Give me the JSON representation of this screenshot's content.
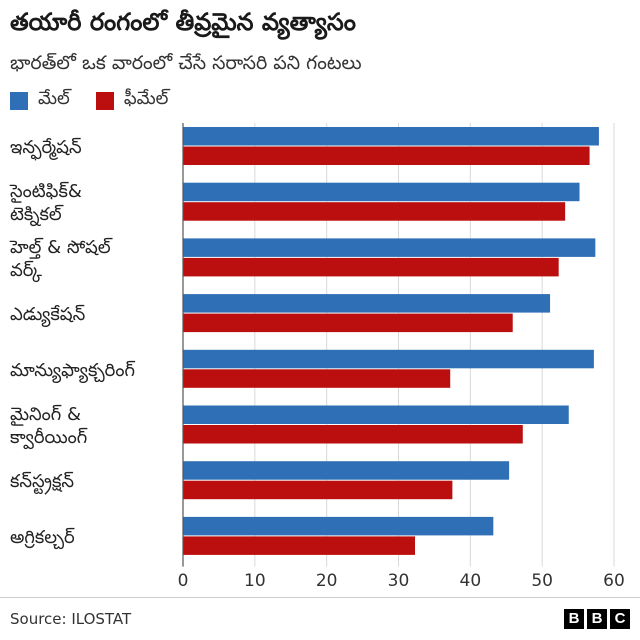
{
  "title": "తయారీ రంగంలో తీవ్రమైన వ్యత్యాసం",
  "subtitle": "భారత్‌లో ఒక వారంలో చేసే సరాసరి పని గంటలు",
  "source": "Source: ILOSTAT",
  "logo": [
    "B",
    "B",
    "C"
  ],
  "colors": {
    "male": "#2f6fb6",
    "female": "#bb0e0e",
    "grid": "#d9d9d9"
  },
  "chart_data": {
    "type": "bar",
    "orientation": "horizontal",
    "categories": [
      [
        "ఇన్ఫర్మేషన్"
      ],
      [
        "సైంటిఫిక్&",
        "టెక్నికల్"
      ],
      [
        "హెల్త్ & సోషల్",
        "వర్క్"
      ],
      [
        "ఎడ్యుకేషన్"
      ],
      [
        "మాన్యుఫ్యాక్చరింగ్"
      ],
      [
        "మైనింగ్ &",
        "క్వారీయింగ్"
      ],
      [
        "కన్‌స్ట్రక్షన్"
      ],
      [
        "అగ్రికల్చర్"
      ]
    ],
    "series": [
      {
        "name": "మేల్",
        "color": "#2f6fb6",
        "values": [
          57.9,
          55.2,
          57.4,
          51.1,
          57.2,
          53.7,
          45.4,
          43.2
        ]
      },
      {
        "name": "ఫీమేల్",
        "color": "#bb0e0e",
        "values": [
          56.6,
          53.2,
          52.3,
          45.9,
          37.2,
          47.3,
          37.5,
          32.3
        ]
      }
    ],
    "xlim": [
      0,
      60
    ],
    "xticks": [
      "0",
      "10",
      "20",
      "30",
      "40",
      "50",
      "60"
    ],
    "legend_position": "top-left",
    "grid": true
  }
}
